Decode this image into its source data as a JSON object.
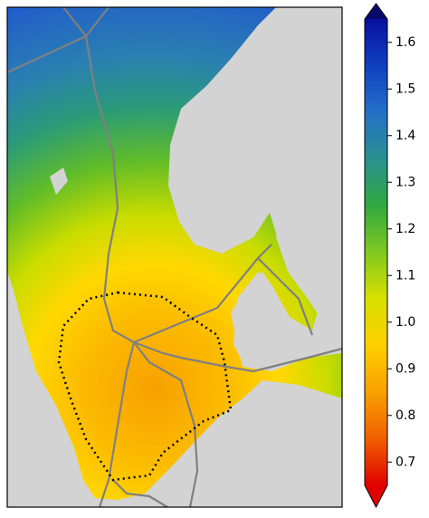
{
  "colorbar": {
    "vmin": 0.65,
    "vmax": 1.65,
    "ticks": [
      0.7,
      0.8,
      0.9,
      {
        "value": 1,
        "label": "1.0"
      },
      1.1,
      1.2,
      1.3,
      1.4,
      1.5,
      1.6
    ],
    "colors": [
      "#e00000",
      "#f06000",
      "#f8a000",
      "#ffd000",
      "#d8e000",
      "#80c820",
      "#30a840",
      "#2a9090",
      "#2470c8",
      "#1040c0",
      "#0810a0"
    ],
    "under_color": "#e00000",
    "over_color": "#08086b"
  }
}
